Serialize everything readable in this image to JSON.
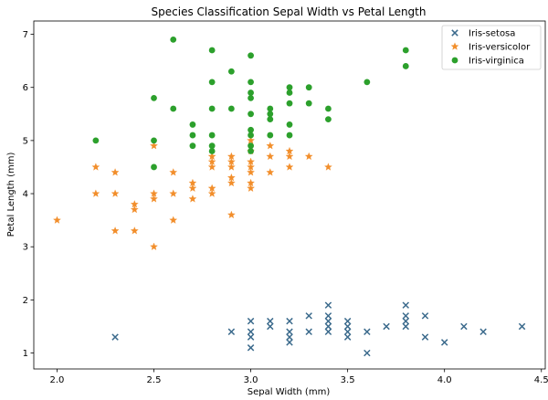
{
  "chart_data": {
    "type": "scatter",
    "title": "Species Classification Sepal Width vs Petal Length",
    "xlabel": "Sepal Width (mm)",
    "ylabel": "Petal Length (mm)",
    "xlim": [
      1.88,
      4.52
    ],
    "ylim": [
      0.7,
      7.25
    ],
    "xticks": [
      2.0,
      2.5,
      3.0,
      3.5,
      4.0,
      4.5
    ],
    "xtick_labels": [
      "2.0",
      "2.5",
      "3.0",
      "3.5",
      "4.0",
      "4.5"
    ],
    "yticks": [
      1,
      2,
      3,
      4,
      5,
      6,
      7
    ],
    "ytick_labels": [
      "1",
      "2",
      "3",
      "4",
      "5",
      "6",
      "7"
    ],
    "grid": false,
    "legend_position": "top-right",
    "series": [
      {
        "name": "Iris-setosa",
        "marker": "x",
        "color": "#3b6a8c",
        "points": [
          [
            2.3,
            1.3
          ],
          [
            2.9,
            1.4
          ],
          [
            3.0,
            1.1
          ],
          [
            3.0,
            1.3
          ],
          [
            3.0,
            1.4
          ],
          [
            3.0,
            1.6
          ],
          [
            3.1,
            1.5
          ],
          [
            3.1,
            1.6
          ],
          [
            3.2,
            1.2
          ],
          [
            3.2,
            1.3
          ],
          [
            3.2,
            1.4
          ],
          [
            3.2,
            1.6
          ],
          [
            3.3,
            1.4
          ],
          [
            3.3,
            1.7
          ],
          [
            3.4,
            1.4
          ],
          [
            3.4,
            1.5
          ],
          [
            3.4,
            1.6
          ],
          [
            3.4,
            1.7
          ],
          [
            3.4,
            1.9
          ],
          [
            3.5,
            1.3
          ],
          [
            3.5,
            1.4
          ],
          [
            3.5,
            1.5
          ],
          [
            3.5,
            1.6
          ],
          [
            3.6,
            1.0
          ],
          [
            3.6,
            1.4
          ],
          [
            3.7,
            1.5
          ],
          [
            3.8,
            1.5
          ],
          [
            3.8,
            1.6
          ],
          [
            3.8,
            1.7
          ],
          [
            3.8,
            1.9
          ],
          [
            3.9,
            1.3
          ],
          [
            3.9,
            1.7
          ],
          [
            4.0,
            1.2
          ],
          [
            4.1,
            1.5
          ],
          [
            4.2,
            1.4
          ],
          [
            4.4,
            1.5
          ]
        ]
      },
      {
        "name": "Iris-versicolor",
        "marker": "star",
        "color": "#f28e2b",
        "points": [
          [
            2.0,
            3.5
          ],
          [
            2.2,
            4.0
          ],
          [
            2.2,
            4.5
          ],
          [
            2.3,
            3.3
          ],
          [
            2.3,
            4.0
          ],
          [
            2.3,
            4.4
          ],
          [
            2.4,
            3.3
          ],
          [
            2.4,
            3.7
          ],
          [
            2.4,
            3.8
          ],
          [
            2.5,
            3.0
          ],
          [
            2.5,
            3.9
          ],
          [
            2.5,
            4.0
          ],
          [
            2.5,
            4.9
          ],
          [
            2.6,
            3.5
          ],
          [
            2.6,
            4.0
          ],
          [
            2.6,
            4.4
          ],
          [
            2.7,
            3.9
          ],
          [
            2.7,
            4.1
          ],
          [
            2.7,
            4.2
          ],
          [
            2.8,
            4.0
          ],
          [
            2.8,
            4.1
          ],
          [
            2.8,
            4.5
          ],
          [
            2.8,
            4.6
          ],
          [
            2.8,
            4.7
          ],
          [
            2.9,
            3.6
          ],
          [
            2.9,
            4.2
          ],
          [
            2.9,
            4.3
          ],
          [
            2.9,
            4.5
          ],
          [
            2.9,
            4.6
          ],
          [
            2.9,
            4.7
          ],
          [
            3.0,
            4.1
          ],
          [
            3.0,
            4.2
          ],
          [
            3.0,
            4.4
          ],
          [
            3.0,
            4.5
          ],
          [
            3.0,
            4.6
          ],
          [
            3.0,
            4.8
          ],
          [
            3.0,
            5.0
          ],
          [
            3.1,
            4.4
          ],
          [
            3.1,
            4.7
          ],
          [
            3.1,
            4.9
          ],
          [
            3.2,
            4.5
          ],
          [
            3.2,
            4.7
          ],
          [
            3.2,
            4.8
          ],
          [
            3.3,
            4.7
          ],
          [
            3.4,
            4.5
          ]
        ]
      },
      {
        "name": "Iris-virginica",
        "marker": "circle",
        "color": "#2ca02c",
        "points": [
          [
            2.2,
            5.0
          ],
          [
            2.5,
            4.5
          ],
          [
            2.5,
            5.0
          ],
          [
            2.5,
            5.8
          ],
          [
            2.6,
            5.6
          ],
          [
            2.6,
            6.9
          ],
          [
            2.7,
            4.9
          ],
          [
            2.7,
            5.1
          ],
          [
            2.7,
            5.3
          ],
          [
            2.8,
            4.8
          ],
          [
            2.8,
            4.9
          ],
          [
            2.8,
            5.1
          ],
          [
            2.8,
            5.6
          ],
          [
            2.8,
            6.1
          ],
          [
            2.8,
            6.7
          ],
          [
            2.9,
            5.6
          ],
          [
            2.9,
            6.3
          ],
          [
            3.0,
            4.8
          ],
          [
            3.0,
            4.9
          ],
          [
            3.0,
            5.1
          ],
          [
            3.0,
            5.2
          ],
          [
            3.0,
            5.5
          ],
          [
            3.0,
            5.8
          ],
          [
            3.0,
            5.9
          ],
          [
            3.0,
            6.1
          ],
          [
            3.0,
            6.6
          ],
          [
            3.1,
            5.1
          ],
          [
            3.1,
            5.4
          ],
          [
            3.1,
            5.5
          ],
          [
            3.1,
            5.6
          ],
          [
            3.2,
            5.1
          ],
          [
            3.2,
            5.3
          ],
          [
            3.2,
            5.7
          ],
          [
            3.2,
            5.9
          ],
          [
            3.2,
            6.0
          ],
          [
            3.3,
            5.7
          ],
          [
            3.3,
            6.0
          ],
          [
            3.4,
            5.4
          ],
          [
            3.4,
            5.6
          ],
          [
            3.6,
            6.1
          ],
          [
            3.8,
            6.4
          ],
          [
            3.8,
            6.7
          ]
        ]
      }
    ]
  }
}
